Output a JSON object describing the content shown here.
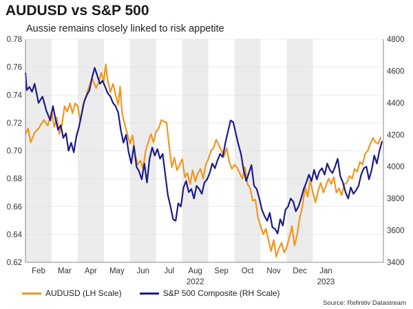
{
  "chart_data": {
    "type": "line",
    "title": "AUDUSD vs S&P 500",
    "subtitle": "Aussie remains closely linked to risk appetite",
    "x_months": [
      "Feb",
      "Mar",
      "Apr",
      "May",
      "Jun",
      "Jul",
      "Aug",
      "Sep",
      "Oct",
      "Nov",
      "Dec",
      "Jan"
    ],
    "x_year_labels": [
      {
        "label": "2022",
        "month_index": 6
      },
      {
        "label": "2023",
        "month_index": 11
      }
    ],
    "left_axis": {
      "label": "AUDUSD (LH Scale)",
      "ylim": [
        0.62,
        0.78
      ],
      "ticks": [
        "0.78",
        "0.76",
        "0.74",
        "0.72",
        "0.70",
        "0.68",
        "0.66",
        "0.64",
        "0.62"
      ]
    },
    "right_axis": {
      "label": "S&P 500 Composite (RH Scale)",
      "ylim": [
        3400,
        4800
      ],
      "ticks": [
        "4800",
        "4600",
        "4400",
        "4200",
        "4000",
        "3800",
        "3600",
        "3400"
      ]
    },
    "shaded_months": [
      "Feb",
      "Apr",
      "Jun",
      "Aug",
      "Oct",
      "Dec"
    ],
    "series": [
      {
        "name": "AUDUSD (LH Scale)",
        "axis": "left",
        "color": "#f0961e",
        "points": [
          [
            0.0,
            0.712
          ],
          [
            0.1,
            0.716
          ],
          [
            0.2,
            0.706
          ],
          [
            0.35,
            0.713
          ],
          [
            0.5,
            0.716
          ],
          [
            0.7,
            0.722
          ],
          [
            0.85,
            0.718
          ],
          [
            1.0,
            0.728
          ],
          [
            1.1,
            0.717
          ],
          [
            1.2,
            0.724
          ],
          [
            1.3,
            0.712
          ],
          [
            1.4,
            0.719
          ],
          [
            1.5,
            0.732
          ],
          [
            1.6,
            0.728
          ],
          [
            1.7,
            0.734
          ],
          [
            1.8,
            0.727
          ],
          [
            1.9,
            0.734
          ],
          [
            2.0,
            0.732
          ],
          [
            2.1,
            0.721
          ],
          [
            2.2,
            0.732
          ],
          [
            2.3,
            0.738
          ],
          [
            2.4,
            0.744
          ],
          [
            2.55,
            0.752
          ],
          [
            2.7,
            0.745
          ],
          [
            2.8,
            0.749
          ],
          [
            2.9,
            0.756
          ],
          [
            3.0,
            0.75
          ],
          [
            3.07,
            0.762
          ],
          [
            3.15,
            0.75
          ],
          [
            3.25,
            0.742
          ],
          [
            3.35,
            0.748
          ],
          [
            3.45,
            0.74
          ],
          [
            3.55,
            0.733
          ],
          [
            3.62,
            0.746
          ],
          [
            3.7,
            0.727
          ],
          [
            3.8,
            0.719
          ],
          [
            3.9,
            0.712
          ],
          [
            4.0,
            0.705
          ],
          [
            4.1,
            0.711
          ],
          [
            4.2,
            0.697
          ],
          [
            4.3,
            0.69
          ],
          [
            4.4,
            0.693
          ],
          [
            4.5,
            0.687
          ],
          [
            4.6,
            0.7
          ],
          [
            4.7,
            0.706
          ],
          [
            4.8,
            0.712
          ],
          [
            4.9,
            0.706
          ],
          [
            5.0,
            0.714
          ],
          [
            5.1,
            0.716
          ],
          [
            5.2,
            0.722
          ],
          [
            5.3,
            0.721
          ],
          [
            5.4,
            0.72
          ],
          [
            5.5,
            0.703
          ],
          [
            5.6,
            0.688
          ],
          [
            5.7,
            0.695
          ],
          [
            5.8,
            0.686
          ],
          [
            5.9,
            0.69
          ],
          [
            6.0,
            0.694
          ],
          [
            6.1,
            0.681
          ],
          [
            6.2,
            0.684
          ],
          [
            6.3,
            0.676
          ],
          [
            6.4,
            0.686
          ],
          [
            6.5,
            0.678
          ],
          [
            6.6,
            0.684
          ],
          [
            6.7,
            0.687
          ],
          [
            6.8,
            0.68
          ],
          [
            6.9,
            0.69
          ],
          [
            7.0,
            0.694
          ],
          [
            7.1,
            0.7
          ],
          [
            7.2,
            0.702
          ],
          [
            7.3,
            0.708
          ],
          [
            7.4,
            0.704
          ],
          [
            7.5,
            0.7
          ],
          [
            7.6,
            0.696
          ],
          [
            7.7,
            0.702
          ],
          [
            7.8,
            0.692
          ],
          [
            7.9,
            0.687
          ],
          [
            8.0,
            0.69
          ],
          [
            8.1,
            0.688
          ],
          [
            8.2,
            0.684
          ],
          [
            8.3,
            0.68
          ],
          [
            8.4,
            0.688
          ],
          [
            8.5,
            0.676
          ],
          [
            8.6,
            0.673
          ],
          [
            8.7,
            0.664
          ],
          [
            8.8,
            0.665
          ],
          [
            8.9,
            0.652
          ],
          [
            9.0,
            0.646
          ],
          [
            9.1,
            0.64
          ],
          [
            9.2,
            0.644
          ],
          [
            9.3,
            0.636
          ],
          [
            9.4,
            0.628
          ],
          [
            9.5,
            0.636
          ],
          [
            9.6,
            0.624
          ],
          [
            9.7,
            0.63
          ],
          [
            9.8,
            0.634
          ],
          [
            9.9,
            0.627
          ],
          [
            10.0,
            0.631
          ],
          [
            10.1,
            0.638
          ],
          [
            10.2,
            0.646
          ],
          [
            10.3,
            0.632
          ],
          [
            10.4,
            0.64
          ],
          [
            10.5,
            0.652
          ],
          [
            10.6,
            0.66
          ],
          [
            10.7,
            0.674
          ],
          [
            10.8,
            0.667
          ],
          [
            10.9,
            0.679
          ],
          [
            11.0,
            0.67
          ],
          [
            11.1,
            0.663
          ],
          [
            11.2,
            0.671
          ],
          [
            11.3,
            0.677
          ],
          [
            11.4,
            0.67
          ],
          [
            11.5,
            0.675
          ],
          [
            11.6,
            0.68
          ],
          [
            11.7,
            0.676
          ],
          [
            11.8,
            0.681
          ],
          [
            11.9,
            0.67
          ],
          [
            12.0,
            0.673
          ],
          [
            12.1,
            0.668
          ],
          [
            12.2,
            0.676
          ],
          [
            12.3,
            0.677
          ],
          [
            12.4,
            0.682
          ],
          [
            12.5,
            0.68
          ],
          [
            12.6,
            0.687
          ],
          [
            12.7,
            0.685
          ],
          [
            12.8,
            0.692
          ],
          [
            12.9,
            0.69
          ],
          [
            13.0,
            0.698
          ],
          [
            13.1,
            0.7
          ],
          [
            13.2,
            0.705
          ],
          [
            13.3,
            0.709
          ],
          [
            13.4,
            0.706
          ],
          [
            13.5,
            0.705
          ],
          [
            13.6,
            0.71
          ]
        ]
      },
      {
        "name": "S&P 500 Composite (RH Scale)",
        "axis": "right",
        "color": "#1a1a8c",
        "points": [
          [
            0.0,
            4590
          ],
          [
            0.05,
            4480
          ],
          [
            0.15,
            4500
          ],
          [
            0.25,
            4470
          ],
          [
            0.35,
            4520
          ],
          [
            0.5,
            4400
          ],
          [
            0.65,
            4440
          ],
          [
            0.8,
            4350
          ],
          [
            0.95,
            4290
          ],
          [
            1.05,
            4380
          ],
          [
            1.15,
            4300
          ],
          [
            1.25,
            4230
          ],
          [
            1.35,
            4260
          ],
          [
            1.45,
            4180
          ],
          [
            1.55,
            4210
          ],
          [
            1.65,
            4100
          ],
          [
            1.75,
            4150
          ],
          [
            1.85,
            4090
          ],
          [
            1.95,
            4190
          ],
          [
            2.05,
            4250
          ],
          [
            2.15,
            4330
          ],
          [
            2.25,
            4410
          ],
          [
            2.35,
            4450
          ],
          [
            2.45,
            4480
          ],
          [
            2.55,
            4560
          ],
          [
            2.65,
            4620
          ],
          [
            2.75,
            4570
          ],
          [
            2.85,
            4520
          ],
          [
            2.95,
            4540
          ],
          [
            3.05,
            4500
          ],
          [
            3.15,
            4460
          ],
          [
            3.25,
            4440
          ],
          [
            3.35,
            4400
          ],
          [
            3.45,
            4380
          ],
          [
            3.55,
            4340
          ],
          [
            3.65,
            4230
          ],
          [
            3.75,
            4150
          ],
          [
            3.85,
            4200
          ],
          [
            3.95,
            4090
          ],
          [
            4.05,
            4020
          ],
          [
            4.15,
            4130
          ],
          [
            4.25,
            4000
          ],
          [
            4.35,
            3970
          ],
          [
            4.45,
            3920
          ],
          [
            4.55,
            4020
          ],
          [
            4.65,
            3900
          ],
          [
            4.75,
            4050
          ],
          [
            4.85,
            4120
          ],
          [
            4.95,
            4070
          ],
          [
            5.05,
            4110
          ],
          [
            5.15,
            4050
          ],
          [
            5.25,
            4080
          ],
          [
            5.35,
            3950
          ],
          [
            5.45,
            3820
          ],
          [
            5.55,
            3750
          ],
          [
            5.65,
            3670
          ],
          [
            5.75,
            3660
          ],
          [
            5.85,
            3770
          ],
          [
            5.95,
            3750
          ],
          [
            6.05,
            3870
          ],
          [
            6.15,
            3910
          ],
          [
            6.25,
            3840
          ],
          [
            6.35,
            3860
          ],
          [
            6.45,
            3800
          ],
          [
            6.55,
            3880
          ],
          [
            6.65,
            3860
          ],
          [
            6.75,
            3830
          ],
          [
            6.85,
            3900
          ],
          [
            6.95,
            3920
          ],
          [
            7.05,
            3960
          ],
          [
            7.15,
            4020
          ],
          [
            7.25,
            3990
          ],
          [
            7.35,
            4040
          ],
          [
            7.45,
            4080
          ],
          [
            7.55,
            4060
          ],
          [
            7.65,
            4150
          ],
          [
            7.75,
            4220
          ],
          [
            7.85,
            4290
          ],
          [
            7.95,
            4280
          ],
          [
            8.05,
            4210
          ],
          [
            8.15,
            4140
          ],
          [
            8.25,
            4080
          ],
          [
            8.35,
            3980
          ],
          [
            8.45,
            3910
          ],
          [
            8.55,
            3960
          ],
          [
            8.65,
            4010
          ],
          [
            8.75,
            3880
          ],
          [
            8.85,
            3860
          ],
          [
            8.95,
            3800
          ],
          [
            9.05,
            3730
          ],
          [
            9.15,
            3690
          ],
          [
            9.25,
            3660
          ],
          [
            9.35,
            3710
          ],
          [
            9.45,
            3620
          ],
          [
            9.55,
            3610
          ],
          [
            9.65,
            3580
          ],
          [
            9.75,
            3670
          ],
          [
            9.85,
            3630
          ],
          [
            9.95,
            3730
          ],
          [
            10.05,
            3750
          ],
          [
            10.15,
            3800
          ],
          [
            10.25,
            3780
          ],
          [
            10.35,
            3720
          ],
          [
            10.45,
            3750
          ],
          [
            10.55,
            3800
          ],
          [
            10.65,
            3860
          ],
          [
            10.75,
            3900
          ],
          [
            10.85,
            3950
          ],
          [
            10.95,
            3910
          ],
          [
            11.05,
            3980
          ],
          [
            11.15,
            3920
          ],
          [
            11.25,
            3970
          ],
          [
            11.35,
            3990
          ],
          [
            11.45,
            3950
          ],
          [
            11.55,
            4020
          ],
          [
            11.65,
            3980
          ],
          [
            11.75,
            3960
          ],
          [
            11.85,
            4000
          ],
          [
            11.95,
            4050
          ],
          [
            12.05,
            3940
          ],
          [
            12.15,
            3900
          ],
          [
            12.25,
            3840
          ],
          [
            12.35,
            3800
          ],
          [
            12.45,
            3870
          ],
          [
            12.55,
            3830
          ],
          [
            12.65,
            3850
          ],
          [
            12.75,
            3880
          ],
          [
            12.85,
            3950
          ],
          [
            12.95,
            3990
          ],
          [
            13.05,
            4000
          ],
          [
            13.15,
            3920
          ],
          [
            13.25,
            3980
          ],
          [
            13.35,
            4070
          ],
          [
            13.45,
            4020
          ],
          [
            13.55,
            4100
          ],
          [
            13.65,
            4160
          ]
        ]
      }
    ],
    "source": "Source: Refinitiv Datastream"
  }
}
